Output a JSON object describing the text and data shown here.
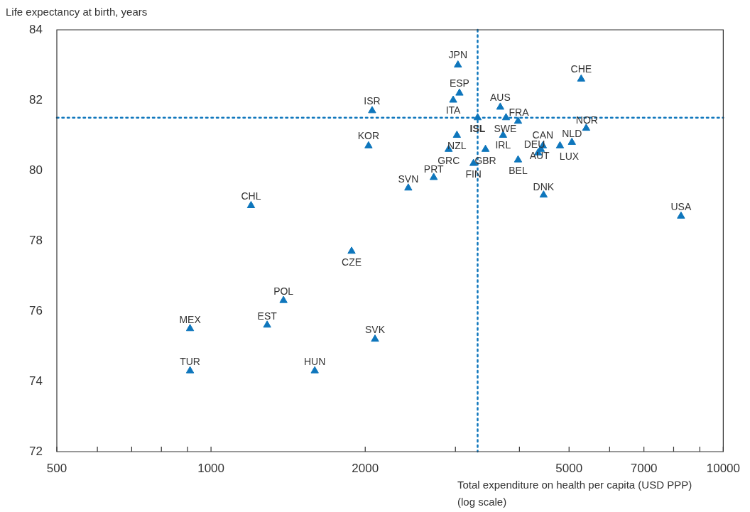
{
  "chart_data": {
    "type": "scatter",
    "xlabel": "Total expenditure on health per capita (USD PPP)\n(log scale)",
    "ylabel": "Life expectancy at birth, years",
    "log": "x",
    "marker": "triangle",
    "color": "#0e76bc",
    "x": [
      3034,
      3055,
      2970,
      2063,
      3315,
      3670,
      3766,
      3976,
      5400,
      5280,
      2030,
      3020,
      3717,
      3434,
      2910,
      3254,
      2721,
      2427,
      3976,
      4459,
      4445,
      4404,
      4350,
      4800,
      5064,
      8270,
      1197,
      1881,
      1385,
      1287,
      910,
      910,
      1594,
      2090
    ],
    "values": [
      83.0,
      82.2,
      82.0,
      81.7,
      81.5,
      81.8,
      81.5,
      81.4,
      81.2,
      82.6,
      80.7,
      81.0,
      81.0,
      80.6,
      80.6,
      80.2,
      79.8,
      79.5,
      80.3,
      79.3,
      80.7,
      80.6,
      80.5,
      80.7,
      80.8,
      78.7,
      79.0,
      77.7,
      76.3,
      75.6,
      75.5,
      74.3,
      74.3,
      75.2
    ],
    "annotations": [
      {
        "text": "JPN",
        "x": 3034,
        "y": 83.0
      },
      {
        "text": "ESP",
        "x": 3055,
        "y": 82.2
      },
      {
        "text": "ITA",
        "x": 2970,
        "y": 82.0
      },
      {
        "text": "ISR",
        "x": 2063,
        "y": 81.7
      },
      {
        "text": "ISL",
        "x": 3315,
        "y": 81.5
      },
      {
        "text": "AUS",
        "x": 3670,
        "y": 81.8
      },
      {
        "text": "SWE",
        "x": 3766,
        "y": 81.5
      },
      {
        "text": "FRA",
        "x": 3976,
        "y": 81.4
      },
      {
        "text": "NOR",
        "x": 5400,
        "y": 81.2
      },
      {
        "text": "CHE",
        "x": 5280,
        "y": 82.6
      },
      {
        "text": "KOR",
        "x": 2030,
        "y": 80.7
      },
      {
        "text": "NZL",
        "x": 3020,
        "y": 81.0
      },
      {
        "text": "IRL",
        "x": 3717,
        "y": 81.0
      },
      {
        "text": "GBR",
        "x": 3434,
        "y": 80.6
      },
      {
        "text": "GRC",
        "x": 2910,
        "y": 80.6
      },
      {
        "text": "FIN",
        "x": 3254,
        "y": 80.2
      },
      {
        "text": "PRT",
        "x": 2721,
        "y": 79.8
      },
      {
        "text": "SVN",
        "x": 2427,
        "y": 79.5
      },
      {
        "text": "BEL",
        "x": 3976,
        "y": 80.3
      },
      {
        "text": "DNK",
        "x": 4459,
        "y": 79.3
      },
      {
        "text": "CAN",
        "x": 4445,
        "y": 80.7
      },
      {
        "text": "DEU",
        "x": 4404,
        "y": 80.6
      },
      {
        "text": "AUT",
        "x": 4350,
        "y": 80.5
      },
      {
        "text": "LUX",
        "x": 4800,
        "y": 80.7
      },
      {
        "text": "NLD",
        "x": 5064,
        "y": 80.8
      },
      {
        "text": "USA",
        "x": 8270,
        "y": 78.7
      },
      {
        "text": "CHL",
        "x": 1197,
        "y": 79.0
      },
      {
        "text": "CZE",
        "x": 1881,
        "y": 77.7
      },
      {
        "text": "POL",
        "x": 1385,
        "y": 76.3
      },
      {
        "text": "EST",
        "x": 1287,
        "y": 75.6
      },
      {
        "text": "MEX",
        "x": 910,
        "y": 75.5
      },
      {
        "text": "TUR",
        "x": 910,
        "y": 74.3
      },
      {
        "text": "HUN",
        "x": 1594,
        "y": 74.3
      },
      {
        "text": "SVK",
        "x": 2090,
        "y": 75.2
      }
    ],
    "xlim": [
      500,
      10000
    ],
    "xticks": [
      500,
      {
        "value": 600,
        "label": null
      },
      {
        "value": 700,
        "label": null
      },
      {
        "value": 800,
        "label": null
      },
      {
        "value": 900,
        "label": null
      },
      1000,
      2000,
      {
        "value": 3000,
        "label": null
      },
      {
        "value": 4000,
        "label": null
      },
      5000,
      {
        "value": 6000,
        "label": null
      },
      7000,
      {
        "value": 8000,
        "label": null
      },
      {
        "value": 9000,
        "label": null
      },
      10000
    ],
    "ylim": [
      72,
      84
    ],
    "yticks": [
      72,
      74,
      76,
      78,
      80,
      82,
      84
    ],
    "ref_lines": [
      {
        "axis": "x",
        "value": 3315,
        "line_style": "dotted",
        "color": "#0e76bc"
      },
      {
        "axis": "y",
        "value": 81.5,
        "line_style": "dotted",
        "color": "#0e76bc"
      }
    ]
  }
}
